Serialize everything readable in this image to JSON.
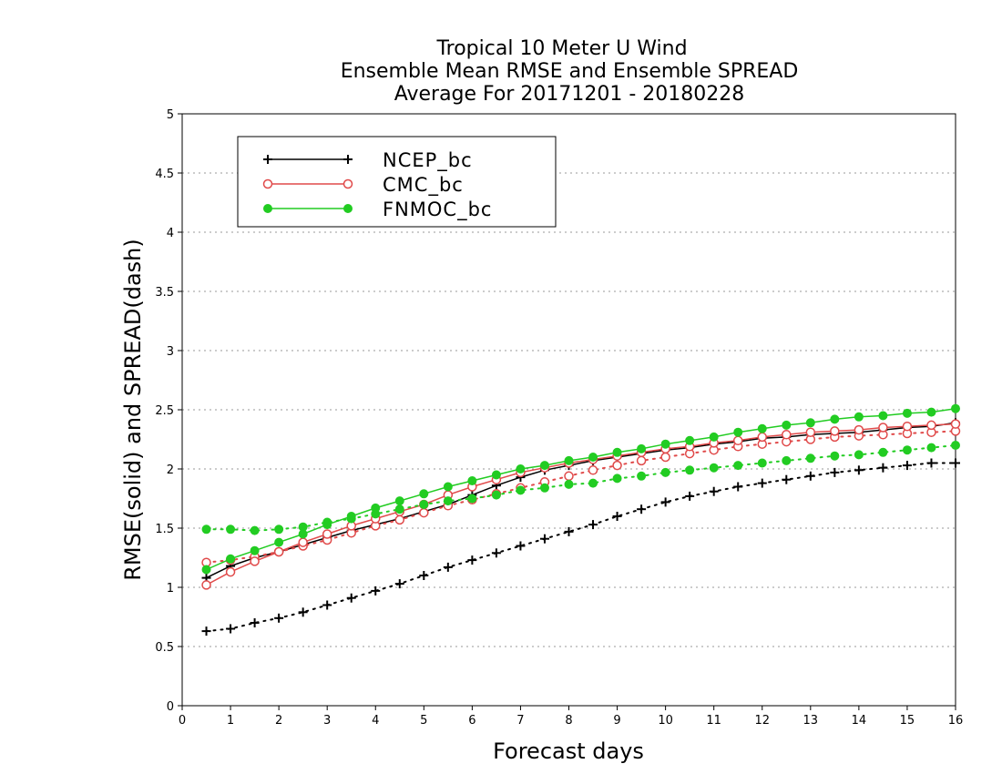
{
  "chart_data": {
    "type": "line",
    "title": [
      "Tropical 10 Meter U Wind",
      "Ensemble Mean RMSE and Ensemble SPREAD",
      "Average For 20171201 - 20180228"
    ],
    "xlabel": "Forecast days",
    "ylabel": "RMSE(solid) and SPREAD(dash)",
    "xlim": [
      0,
      16
    ],
    "ylim": [
      0,
      5
    ],
    "xticks": [
      "0",
      "1",
      "2",
      "3",
      "4",
      "5",
      "6",
      "7",
      "8",
      "9",
      "10",
      "11",
      "12",
      "13",
      "14",
      "15",
      "16"
    ],
    "yticks": [
      "0",
      "0.5",
      "1",
      "1.5",
      "2",
      "2.5",
      "3",
      "3.5",
      "4",
      "4.5",
      "5"
    ],
    "grid": "horizontal dotted",
    "legend_position": "top-left",
    "x": [
      0.5,
      1,
      1.5,
      2,
      2.5,
      3,
      3.5,
      4,
      4.5,
      5,
      5.5,
      6,
      6.5,
      7,
      7.5,
      8,
      8.5,
      9,
      9.5,
      10,
      10.5,
      11,
      11.5,
      12,
      12.5,
      13,
      13.5,
      14,
      14.5,
      15,
      15.5,
      16
    ],
    "series": [
      {
        "name": "NCEP_bc",
        "color": "#000000",
        "marker": "plus",
        "rmse": [
          1.08,
          1.18,
          1.25,
          1.3,
          1.36,
          1.42,
          1.48,
          1.53,
          1.58,
          1.64,
          1.7,
          1.78,
          1.86,
          1.93,
          1.99,
          2.03,
          2.07,
          2.1,
          2.13,
          2.16,
          2.18,
          2.21,
          2.23,
          2.26,
          2.27,
          2.29,
          2.3,
          2.31,
          2.33,
          2.35,
          2.36,
          2.39
        ],
        "spread": [
          0.63,
          0.65,
          0.7,
          0.74,
          0.79,
          0.85,
          0.91,
          0.97,
          1.03,
          1.1,
          1.17,
          1.23,
          1.29,
          1.35,
          1.41,
          1.47,
          1.53,
          1.6,
          1.66,
          1.72,
          1.77,
          1.81,
          1.85,
          1.88,
          1.91,
          1.94,
          1.97,
          1.99,
          2.01,
          2.03,
          2.05,
          2.05
        ]
      },
      {
        "name": "CMC_bc",
        "color": "#e04a4a",
        "marker": "open-circle",
        "rmse": [
          1.02,
          1.13,
          1.22,
          1.3,
          1.38,
          1.45,
          1.52,
          1.58,
          1.64,
          1.7,
          1.78,
          1.85,
          1.91,
          1.97,
          2.01,
          2.05,
          2.08,
          2.11,
          2.14,
          2.17,
          2.19,
          2.22,
          2.24,
          2.27,
          2.29,
          2.31,
          2.32,
          2.33,
          2.35,
          2.36,
          2.37,
          2.38
        ],
        "spread": [
          1.21,
          1.23,
          1.26,
          1.3,
          1.35,
          1.4,
          1.46,
          1.52,
          1.57,
          1.63,
          1.69,
          1.74,
          1.79,
          1.84,
          1.89,
          1.94,
          1.99,
          2.03,
          2.07,
          2.1,
          2.13,
          2.16,
          2.19,
          2.21,
          2.23,
          2.25,
          2.27,
          2.28,
          2.29,
          2.3,
          2.31,
          2.32
        ]
      },
      {
        "name": "FNMOC_bc",
        "color": "#22cc22",
        "marker": "filled-circle",
        "rmse": [
          1.15,
          1.24,
          1.31,
          1.38,
          1.45,
          1.53,
          1.6,
          1.67,
          1.73,
          1.79,
          1.85,
          1.9,
          1.95,
          2.0,
          2.03,
          2.07,
          2.1,
          2.14,
          2.17,
          2.21,
          2.24,
          2.27,
          2.31,
          2.34,
          2.37,
          2.39,
          2.42,
          2.44,
          2.45,
          2.47,
          2.48,
          2.51
        ],
        "spread": [
          1.49,
          1.49,
          1.48,
          1.49,
          1.51,
          1.55,
          1.58,
          1.62,
          1.66,
          1.7,
          1.73,
          1.75,
          1.78,
          1.82,
          1.84,
          1.87,
          1.88,
          1.92,
          1.94,
          1.97,
          1.99,
          2.01,
          2.03,
          2.05,
          2.07,
          2.09,
          2.11,
          2.12,
          2.14,
          2.16,
          2.18,
          2.2
        ]
      }
    ]
  }
}
